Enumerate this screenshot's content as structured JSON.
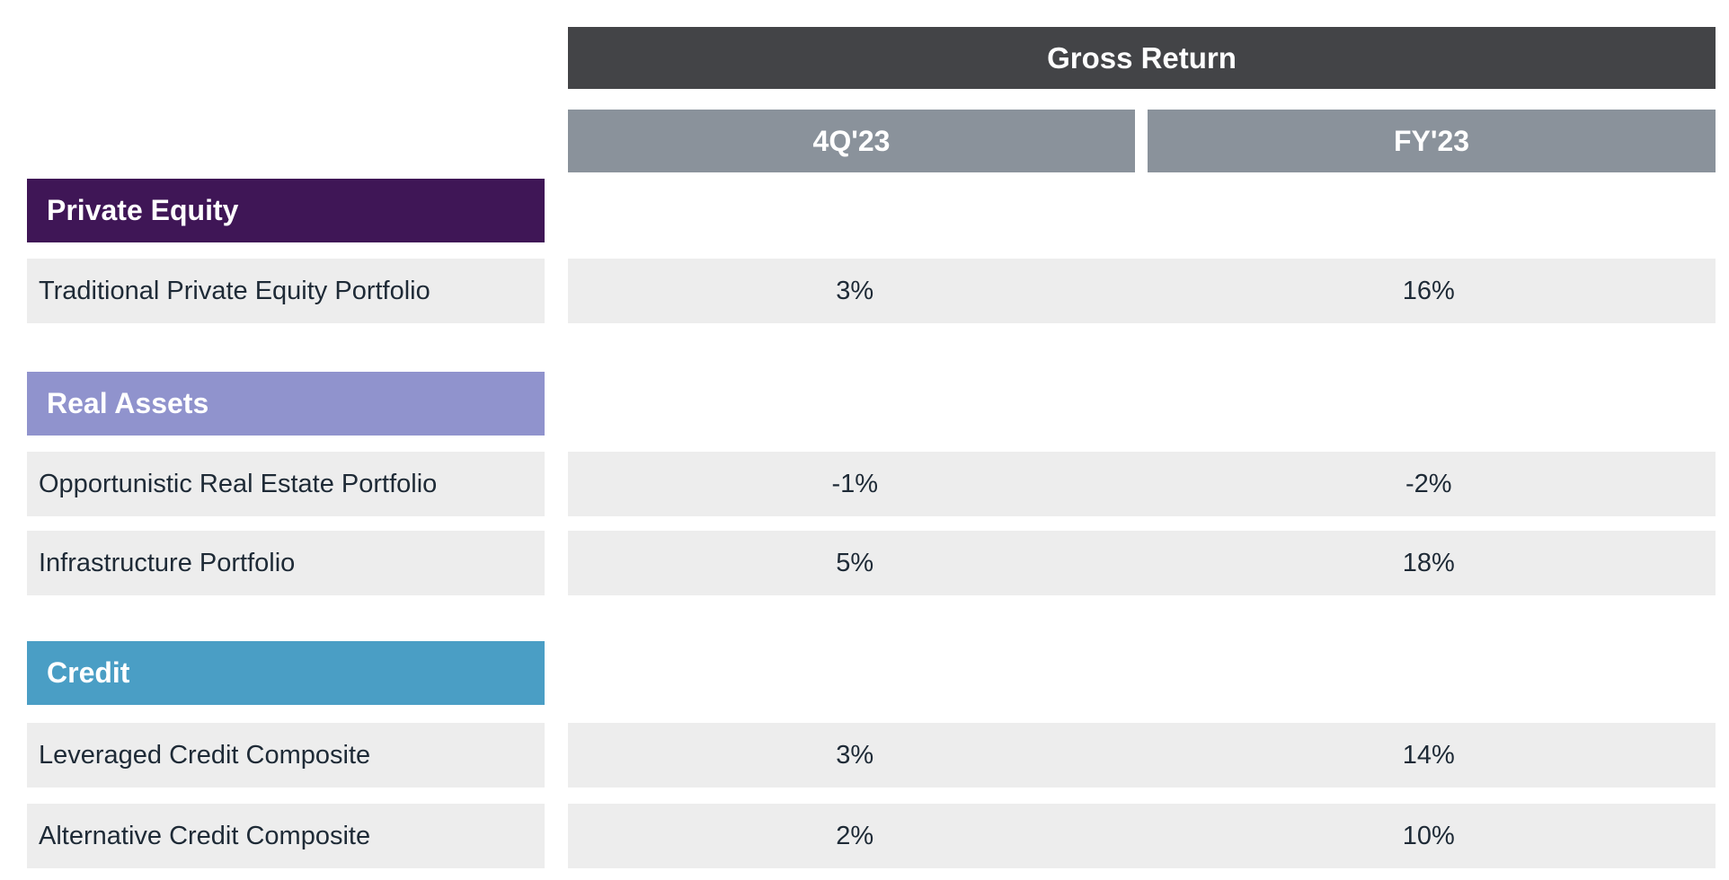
{
  "chart_data": {
    "type": "table",
    "title": "Gross Return",
    "columns": [
      "4Q'23",
      "FY'23"
    ],
    "sections": [
      {
        "name": "Private Equity",
        "rows": [
          {
            "label": "Traditional Private Equity Portfolio",
            "values": [
              "3%",
              "16%"
            ]
          }
        ]
      },
      {
        "name": "Real Assets",
        "rows": [
          {
            "label": "Opportunistic Real Estate Portfolio",
            "values": [
              "-1%",
              "-2%"
            ]
          },
          {
            "label": "Infrastructure Portfolio",
            "values": [
              "5%",
              "18%"
            ]
          }
        ]
      },
      {
        "name": "Credit",
        "rows": [
          {
            "label": "Leveraged Credit Composite",
            "values": [
              "3%",
              "14%"
            ]
          },
          {
            "label": "Alternative Credit Composite",
            "values": [
              "2%",
              "10%"
            ]
          }
        ]
      }
    ]
  },
  "table": {
    "header": {
      "title": "Gross Return",
      "columns": [
        "4Q'23",
        "FY'23"
      ]
    },
    "sections": [
      {
        "name": "Private Equity",
        "color": "#3f1656",
        "rows": [
          {
            "label": "Traditional Private Equity Portfolio",
            "values": [
              "3%",
              "16%"
            ]
          }
        ]
      },
      {
        "name": "Real Assets",
        "color": "#9093cd",
        "rows": [
          {
            "label": "Opportunistic Real Estate Portfolio",
            "values": [
              "-1%",
              "-2%"
            ]
          },
          {
            "label": "Infrastructure Portfolio",
            "values": [
              "5%",
              "18%"
            ]
          }
        ]
      },
      {
        "name": "Credit",
        "color": "#4a9ec5",
        "rows": [
          {
            "label": "Leveraged Credit Composite",
            "values": [
              "3%",
              "14%"
            ]
          },
          {
            "label": "Alternative Credit Composite",
            "values": [
              "2%",
              "10%"
            ]
          }
        ]
      }
    ],
    "colors": {
      "header_bg": "#434447",
      "column_header_bg": "#8a929b",
      "row_bg": "#ededed",
      "body_text": "#1e2a36",
      "header_text": "#ffffff"
    }
  }
}
